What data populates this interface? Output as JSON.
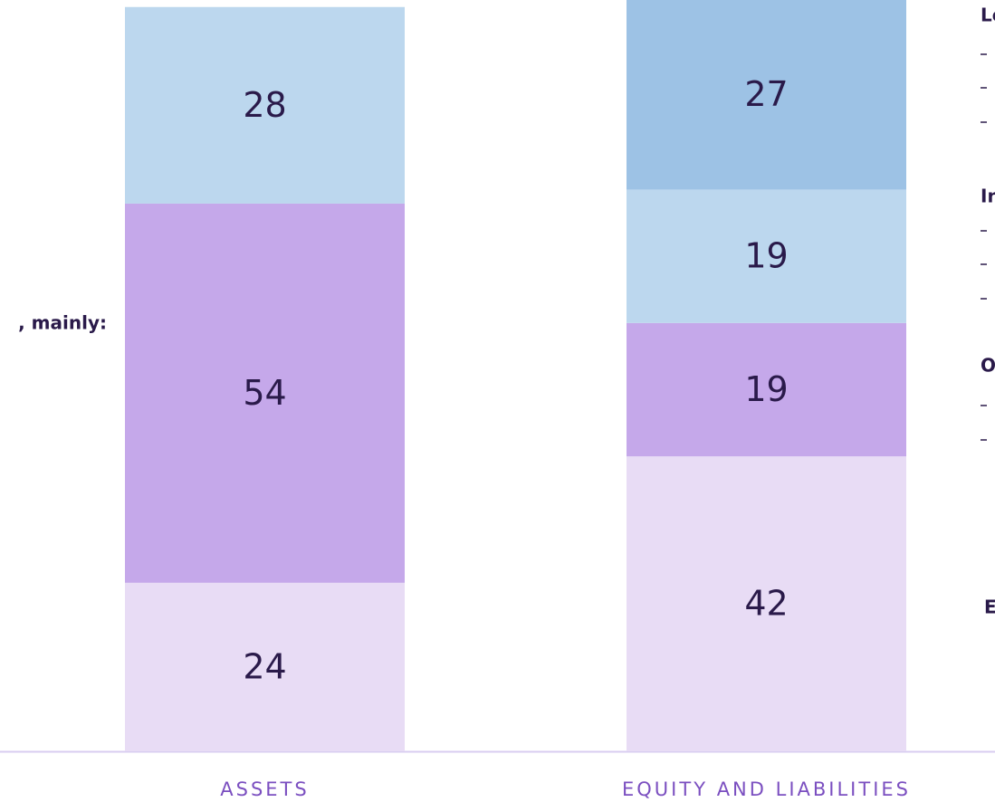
{
  "chart_data": {
    "type": "stacked-bar",
    "categories": [
      "ASSETS",
      "EQUITY AND LIABILITIES"
    ],
    "series": [
      {
        "color": "#e8dcf5",
        "values": [
          24,
          42
        ]
      },
      {
        "color": "#c5a8ea",
        "values": [
          54,
          19
        ]
      },
      {
        "color": "#bcd7ee",
        "values": [
          28,
          19
        ]
      },
      {
        "color": "#9dc2e5",
        "values": [
          null,
          27
        ]
      }
    ],
    "annotations": [
      ", mainly:",
      "Lo",
      "In",
      "O",
      "E"
    ]
  }
}
